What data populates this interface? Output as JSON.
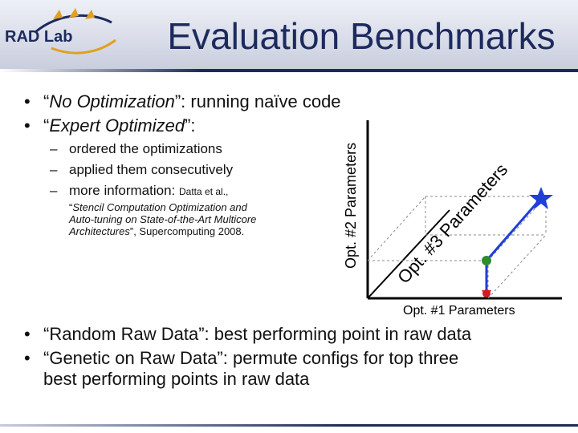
{
  "header": {
    "logo_text": "RAD Lab",
    "title": "Evaluation Benchmarks"
  },
  "bullets_top": [
    {
      "prefix": "“",
      "emph": "No Optimization",
      "suffix": "”: running naïve code"
    },
    {
      "prefix": "“",
      "emph": "Expert Optimized",
      "suffix": "”:"
    }
  ],
  "sub_bullets": [
    {
      "text": "ordered the optimizations"
    },
    {
      "text": "applied them consecutively"
    },
    {
      "text": "more information: ",
      "small": "Datta et al.,"
    }
  ],
  "citation": {
    "open_quote": "“",
    "line1": "Stencil Computation Optimization and",
    "line2": "Auto-tuning on State-of-the-Art Multicore",
    "line3": "Architectures",
    "line3_suffix": "”, Supercomputing 2008."
  },
  "diagram": {
    "y_axis_label": "Opt. #2 Parameters",
    "x_axis_label": "Opt. #1 Parameters",
    "z_axis_label": "Opt. #3 Parameters",
    "colors": {
      "axis": "#000000",
      "box": "#888888",
      "path": "#1f3fd6",
      "star": "#1f3fd6",
      "green": "#2e8b2e",
      "red": "#d01c1c"
    }
  },
  "bullets_bottom": [
    {
      "text": "“Random Raw Data”: best performing point in raw data"
    },
    {
      "text": "“Genetic on Raw Data”: permute configs for top three"
    },
    {
      "text": "best performing points in raw data"
    }
  ]
}
